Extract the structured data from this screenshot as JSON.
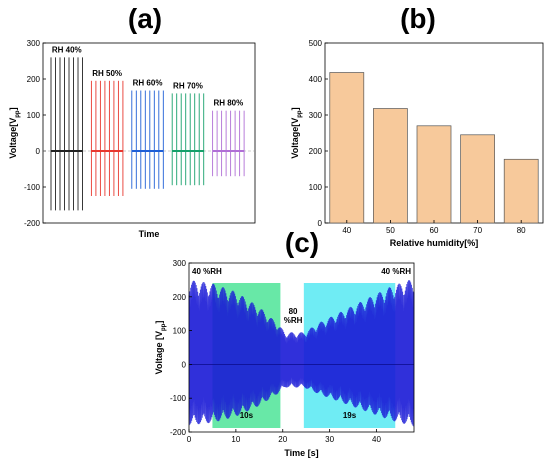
{
  "panels": {
    "a": "(a)",
    "b": "(b)",
    "c": "(c)"
  },
  "chart_data": [
    {
      "id": "a",
      "type": "line",
      "xlabel": "Time",
      "ylabel": "Voltage[V",
      "ylabel_sub": "pp",
      "ylabel_tail": "]",
      "ylim": [
        -200,
        300
      ],
      "yticks": [
        -200,
        -100,
        0,
        100,
        200,
        300
      ],
      "show_xticks": false,
      "grid": false,
      "groups": [
        {
          "label": "RH 40%",
          "color": "#222222",
          "pos": 260,
          "neg": -165,
          "peaks": 8
        },
        {
          "label": "RH 50%",
          "color": "#e8382f",
          "pos": 195,
          "neg": -125,
          "peaks": 8
        },
        {
          "label": "RH 60%",
          "color": "#1f5fd6",
          "pos": 168,
          "neg": -105,
          "peaks": 8
        },
        {
          "label": "RH 70%",
          "color": "#16a06b",
          "pos": 160,
          "neg": -95,
          "peaks": 8
        },
        {
          "label": "RH 80%",
          "color": "#b06fd6",
          "pos": 112,
          "neg": -70,
          "peaks": 8
        }
      ]
    },
    {
      "id": "b",
      "type": "bar",
      "xlabel": "Relative humidity[%]",
      "ylabel": "Voltage[V",
      "ylabel_sub": "pp",
      "ylabel_tail": "]",
      "categories": [
        "40",
        "50",
        "60",
        "70",
        "80"
      ],
      "values": [
        418,
        318,
        270,
        245,
        177
      ],
      "ylim": [
        0,
        500
      ],
      "yticks": [
        0,
        100,
        200,
        300,
        400,
        500
      ],
      "bar_color": "#f7c99b",
      "grid": false
    },
    {
      "id": "c",
      "type": "line",
      "xlabel": "Time [s]",
      "ylabel": "Voltage [V",
      "ylabel_sub": "pp",
      "ylabel_tail": "]",
      "xlim": [
        0,
        48
      ],
      "ylim": [
        -200,
        300
      ],
      "xticks": [
        0,
        10,
        20,
        30,
        40
      ],
      "yticks": [
        -200,
        -100,
        0,
        100,
        200,
        300
      ],
      "signal_color": "#1a1ad6",
      "annotations": {
        "start": "40 %RH",
        "end": "40 %RH",
        "mid_line1": "80",
        "mid_line2": "%RH",
        "t1": "10s",
        "t2": "19s"
      },
      "regions": [
        {
          "from": 5,
          "to": 19.5,
          "color": "#35e08a",
          "label": "10s"
        },
        {
          "from": 24.5,
          "to": 44,
          "color": "#3fe6f0",
          "label": "19s"
        }
      ],
      "envelope": [
        [
          0,
          250
        ],
        [
          5,
          240
        ],
        [
          10,
          215
        ],
        [
          15,
          170
        ],
        [
          19,
          120
        ],
        [
          20.5,
          95
        ],
        [
          24.5,
          95
        ],
        [
          28,
          125
        ],
        [
          33,
          160
        ],
        [
          38,
          195
        ],
        [
          43,
          230
        ],
        [
          48,
          255
        ]
      ],
      "grid": false
    }
  ]
}
